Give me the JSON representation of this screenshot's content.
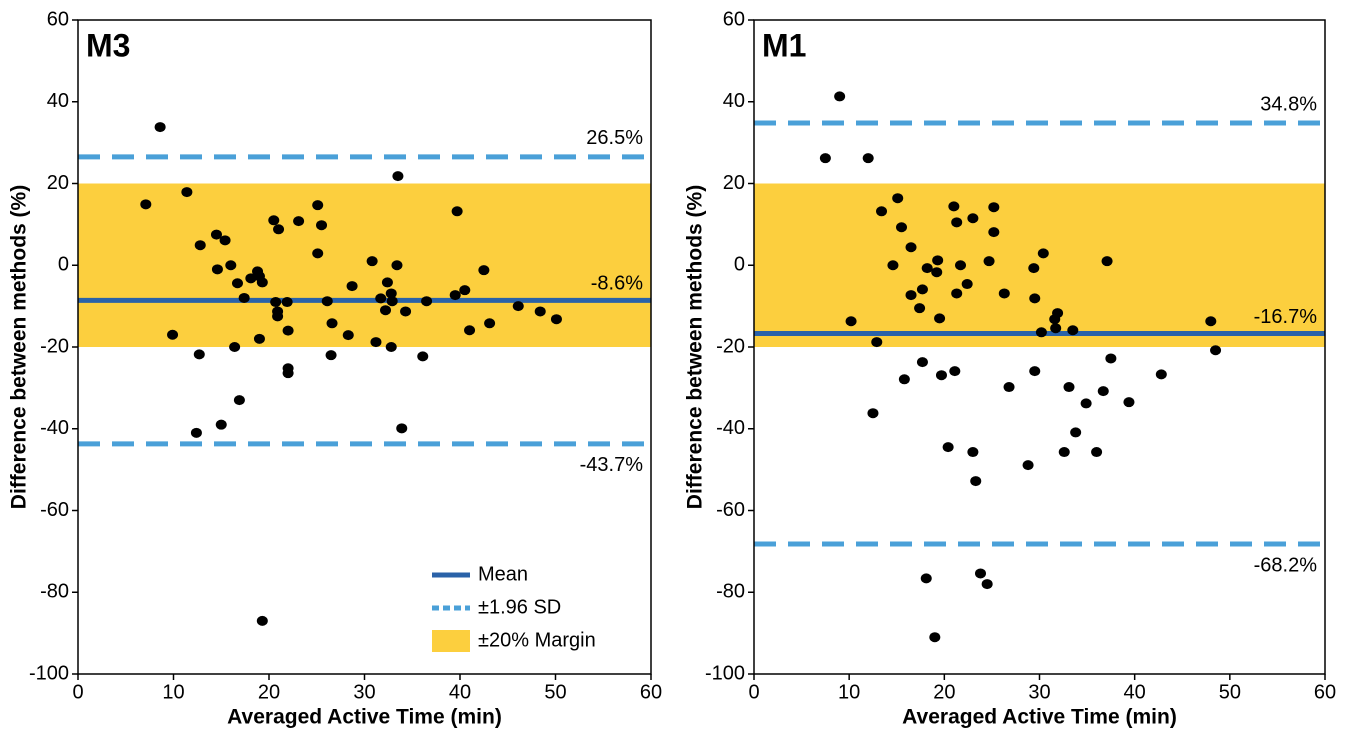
{
  "chart_data": [
    {
      "type": "scatter",
      "title": "M3",
      "xlabel": "Averaged Active Time (min)",
      "ylabel": "Difference between methods (%)",
      "xlim": [
        0,
        60
      ],
      "ylim": [
        -100,
        60
      ],
      "xticks": [
        0,
        10,
        20,
        30,
        40,
        50,
        60
      ],
      "yticks": [
        -100,
        -80,
        -60,
        -40,
        -20,
        0,
        20,
        40,
        60
      ],
      "legend": "lower right",
      "margin": {
        "name": "±20% Margin",
        "values": [
          -20,
          20
        ],
        "color": "#fccf3e"
      },
      "mean": {
        "name": "Mean",
        "value": -8.6,
        "value_label": "-8.6%",
        "color": "#2a62a8"
      },
      "sd": {
        "name": "±1.96 SD",
        "values": [
          26.5,
          -43.7
        ],
        "value_labels": [
          "26.5%",
          "-43.7%"
        ],
        "color": "#4aa0d8"
      },
      "points": {
        "color": "#000000",
        "x": [
          7.1,
          8.6,
          9.9,
          11.4,
          12.4,
          12.8,
          12.7,
          14.5,
          14.6,
          15,
          15.4,
          16,
          16.4,
          16.7,
          16.9,
          17.4,
          18.1,
          18.8,
          19,
          19,
          19.3,
          19.3,
          20.5,
          20.7,
          21,
          20.9,
          20.9,
          21.9,
          22,
          22,
          22,
          23.1,
          25.1,
          25.1,
          25.5,
          26.1,
          26.6,
          26.5,
          28.3,
          28.7,
          30.8,
          31.2,
          31.7,
          32.2,
          32.4,
          32.8,
          32.8,
          32.9,
          33.4,
          33.5,
          33.9,
          34.3,
          36.1,
          36.5,
          39.5,
          39.7,
          40.5,
          41,
          42.5,
          43.1,
          46.1,
          48.4,
          50.1
        ],
        "values": [
          14.9,
          33.8,
          -17,
          17.9,
          -41,
          4.9,
          -21.8,
          7.5,
          -1,
          -39,
          6.1,
          0,
          -20,
          -4.4,
          -33,
          -8,
          -3.2,
          -1.5,
          -2.7,
          -18,
          -87,
          -4.2,
          11,
          -9,
          8.8,
          -11.3,
          -12.5,
          -9,
          -16,
          -25.2,
          -26.4,
          10.8,
          14.7,
          2.9,
          9.8,
          -8.8,
          -14.2,
          -22,
          -17.1,
          -5.1,
          1,
          -18.8,
          -8.1,
          -11,
          -4.2,
          -6.9,
          -20,
          -8.8,
          0,
          21.8,
          -39.9,
          -11.3,
          -22.3,
          -8.8,
          -7.3,
          13.2,
          -6.1,
          -15.9,
          -1.2,
          -14.2,
          -10,
          -11.3,
          -13.2
        ]
      }
    },
    {
      "type": "scatter",
      "title": "M1",
      "xlabel": "Averaged Active Time (min)",
      "ylabel": "Difference between methods (%)",
      "xlim": [
        0,
        60
      ],
      "ylim": [
        -100,
        60
      ],
      "xticks": [
        0,
        10,
        20,
        30,
        40,
        50,
        60
      ],
      "yticks": [
        -100,
        -80,
        -60,
        -40,
        -20,
        0,
        20,
        40,
        60
      ],
      "margin": {
        "values": [
          -20,
          20
        ],
        "color": "#fccf3e"
      },
      "mean": {
        "value": -16.7,
        "value_label": "-16.7%",
        "color": "#2a62a8"
      },
      "sd": {
        "values": [
          34.8,
          -68.2
        ],
        "value_labels": [
          "34.8%",
          "-68.2%"
        ],
        "color": "#4aa0d8"
      },
      "points": {
        "color": "#000000",
        "x": [
          7.5,
          9,
          10.2,
          12,
          12.5,
          12.9,
          13.4,
          14.6,
          15.1,
          15.5,
          15.8,
          16.5,
          16.5,
          17.4,
          17.7,
          17.7,
          18.1,
          18.2,
          19,
          19.2,
          19.3,
          19.5,
          19.7,
          20.4,
          21,
          21.1,
          21.3,
          21.3,
          21.7,
          22.4,
          23,
          23,
          23.3,
          23.8,
          24.5,
          24.7,
          25.2,
          25.2,
          26.3,
          26.8,
          28.8,
          29.4,
          29.5,
          29.5,
          30.2,
          30.4,
          31.6,
          31.7,
          31.9,
          32.6,
          33.1,
          33.5,
          33.8,
          34.9,
          36,
          36.7,
          37.1,
          37.5,
          39.4,
          42.8,
          48,
          48.5
        ],
        "values": [
          26.2,
          41.3,
          -13.7,
          26.2,
          -36.2,
          -18.8,
          13.2,
          0,
          16.4,
          9.3,
          -27.9,
          -7.3,
          4.4,
          -10.5,
          -5.9,
          -23.7,
          -76.6,
          -0.7,
          -91,
          -1.7,
          1.2,
          -13,
          -26.9,
          -44.5,
          14.4,
          -25.9,
          10.5,
          -6.9,
          0,
          -4.6,
          11.5,
          -45.7,
          -52.8,
          -75.4,
          -78,
          1,
          14.2,
          8.1,
          -6.9,
          -29.8,
          -48.9,
          -0.7,
          -8.1,
          -25.9,
          -16.4,
          2.9,
          -13.2,
          -15.4,
          -11.7,
          -45.7,
          -29.8,
          -15.9,
          -40.9,
          -33.8,
          -45.7,
          -30.8,
          1,
          -22.8,
          -33.5,
          -26.7,
          -13.7,
          -20.8
        ]
      }
    }
  ]
}
